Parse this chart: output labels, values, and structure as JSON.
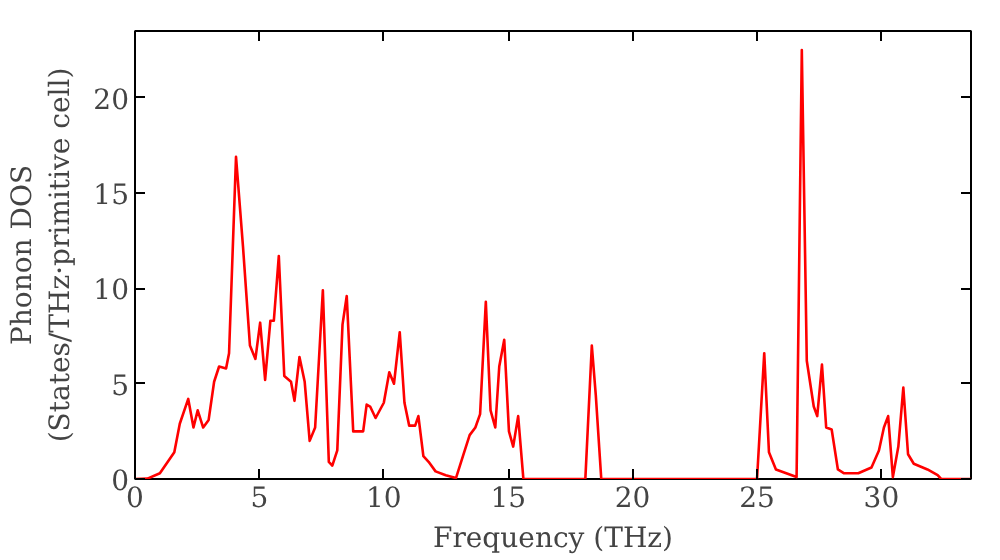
{
  "chart_data": {
    "type": "line",
    "xlabel": "Frequency (THz)",
    "ylabel": "Phonon DOS\n(States/THz·primitive cell)",
    "xlim": [
      0,
      33.6
    ],
    "ylim": [
      0,
      23.5
    ],
    "xticks": [
      0,
      5,
      10,
      15,
      20,
      25,
      30
    ],
    "yticks": [
      0,
      5,
      10,
      15,
      20
    ],
    "x": [
      0,
      0.5,
      1.0,
      1.58,
      1.8,
      2.14,
      2.35,
      2.52,
      2.74,
      2.96,
      3.18,
      3.38,
      3.66,
      3.78,
      4.06,
      4.34,
      4.62,
      4.84,
      5.03,
      5.23,
      5.44,
      5.58,
      5.78,
      6.0,
      6.27,
      6.41,
      6.61,
      6.82,
      7.02,
      7.24,
      7.55,
      7.79,
      7.93,
      8.13,
      8.34,
      8.51,
      8.77,
      9.17,
      9.31,
      9.45,
      9.67,
      10.0,
      10.22,
      10.41,
      10.64,
      10.83,
      11.02,
      11.26,
      11.39,
      11.59,
      11.8,
      12.08,
      12.49,
      12.9,
      13.18,
      13.45,
      13.68,
      13.87,
      14.1,
      14.29,
      14.48,
      14.64,
      14.84,
      15.03,
      15.2,
      15.4,
      15.61,
      18.1,
      18.36,
      18.52,
      18.74,
      25.0,
      25.29,
      25.48,
      25.76,
      26.59,
      26.8,
      27.0,
      27.28,
      27.42,
      27.61,
      27.78,
      28.0,
      28.25,
      28.5,
      29.07,
      29.6,
      29.9,
      30.1,
      30.27,
      30.46,
      30.68,
      30.88,
      31.07,
      31.3,
      31.85,
      32.26,
      32.4,
      33.6
    ],
    "series": [
      {
        "color": "#ff0000",
        "values": [
          0,
          0.02,
          0.3,
          1.4,
          2.9,
          4.2,
          2.7,
          3.6,
          2.7,
          3.1,
          5.1,
          5.9,
          5.8,
          6.6,
          16.9,
          12.2,
          7.0,
          6.3,
          8.2,
          5.2,
          8.3,
          8.3,
          11.7,
          5.4,
          5.1,
          4.1,
          6.4,
          5.1,
          2.0,
          2.7,
          9.9,
          0.9,
          0.7,
          1.5,
          8.1,
          9.6,
          2.5,
          2.5,
          3.9,
          3.8,
          3.2,
          4.0,
          5.6,
          5.0,
          7.7,
          4.0,
          2.8,
          2.8,
          3.3,
          1.2,
          0.9,
          0.4,
          0.2,
          0.05,
          1.2,
          2.3,
          2.7,
          3.4,
          9.3,
          3.6,
          2.7,
          5.9,
          7.3,
          2.5,
          1.7,
          3.3,
          0,
          0,
          7.0,
          4.4,
          0,
          0,
          6.6,
          1.4,
          0.5,
          0.1,
          22.5,
          6.2,
          3.8,
          3.3,
          6.0,
          2.7,
          2.6,
          0.5,
          0.3,
          0.3,
          0.6,
          1.5,
          2.7,
          3.3,
          0.1,
          1.7,
          4.8,
          1.3,
          0.8,
          0.5,
          0.2,
          0,
          0
        ]
      }
    ]
  }
}
